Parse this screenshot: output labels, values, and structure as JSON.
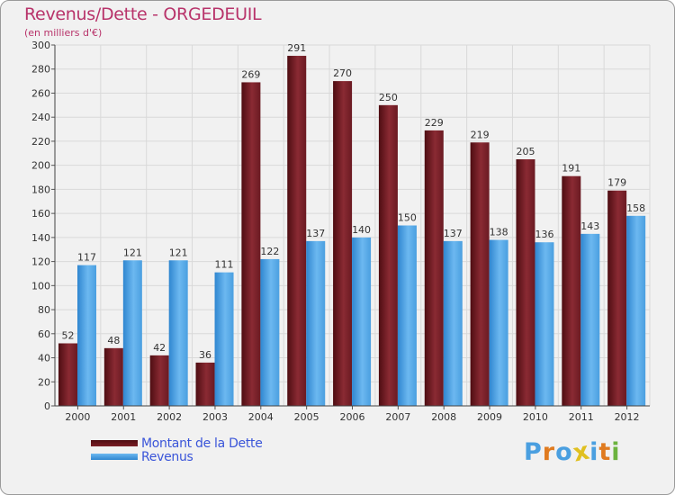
{
  "chart_data": {
    "type": "bar",
    "title": "Revenus/Dette - ORGEDEUIL",
    "subtitle": "(en milliers d'€)",
    "categories": [
      "2000",
      "2001",
      "2002",
      "2003",
      "2004",
      "2005",
      "2006",
      "2007",
      "2008",
      "2009",
      "2010",
      "2011",
      "2012"
    ],
    "series": [
      {
        "name": "Montant de la Dette",
        "color": "#7a1d25",
        "values": [
          52,
          48,
          42,
          36,
          269,
          291,
          270,
          250,
          229,
          219,
          205,
          191,
          179
        ]
      },
      {
        "name": "Revenus",
        "color": "#4a9fe0",
        "values": [
          117,
          121,
          121,
          111,
          122,
          137,
          140,
          150,
          137,
          138,
          136,
          143,
          158
        ]
      }
    ],
    "ylim": [
      0,
      300
    ],
    "ytick_step": 20,
    "grid": true,
    "legend_position": "bottom-left"
  },
  "branding": {
    "logo_letters": [
      "P",
      "r",
      "o",
      "x",
      "i",
      "t",
      "i"
    ],
    "logo_colors": [
      "#4a9fe0",
      "#e07b20",
      "#4a9fe0",
      "#e0c020",
      "#4a9fe0",
      "#e07b20",
      "#6cb33e"
    ]
  }
}
